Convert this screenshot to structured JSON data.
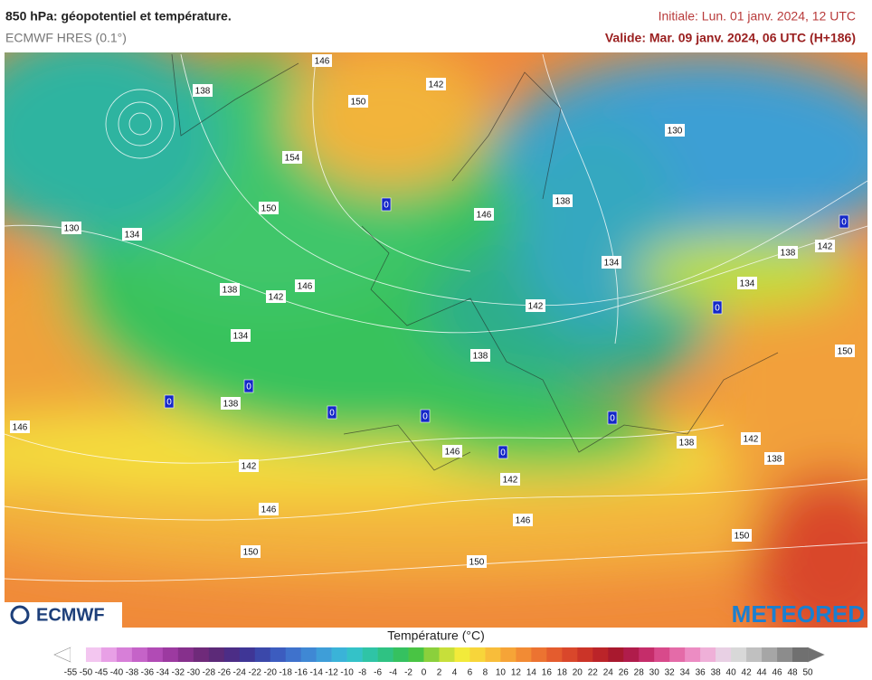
{
  "header": {
    "title": "850 hPa: géopotentiel et température.",
    "model": "ECMWF HRES (0.1°)",
    "initial": "Initiale: Lun. 01 janv. 2024, 12 UTC",
    "valid": "Valide: Mar. 09 janv. 2024, 06 UTC (H+186)"
  },
  "map": {
    "contour_labels": [
      "146",
      "138",
      "142",
      "150",
      "154",
      "130",
      "150",
      "138",
      "146",
      "130",
      "134",
      "142",
      "138",
      "134",
      "138",
      "142",
      "146",
      "134",
      "142",
      "134",
      "150",
      "138",
      "138",
      "146",
      "138",
      "142",
      "146",
      "138",
      "142",
      "142",
      "146",
      "146",
      "150",
      "150",
      "150"
    ],
    "freezing_labels": [
      "0",
      "0",
      "0",
      "0",
      "0",
      "0",
      "0",
      "0",
      "0"
    ]
  },
  "logos": {
    "left": "ECMWF",
    "right": "METEORED"
  },
  "legend": {
    "title": "Température (°C)",
    "ticks": [
      "-55",
      "-50",
      "-45",
      "-40",
      "-38",
      "-36",
      "-34",
      "-32",
      "-30",
      "-28",
      "-26",
      "-24",
      "-22",
      "-20",
      "-18",
      "-16",
      "-14",
      "-12",
      "-10",
      "-8",
      "-6",
      "-4",
      "-2",
      "0",
      "2",
      "4",
      "6",
      "8",
      "10",
      "12",
      "14",
      "16",
      "18",
      "20",
      "22",
      "24",
      "26",
      "28",
      "30",
      "32",
      "34",
      "36",
      "38",
      "40",
      "42",
      "44",
      "46",
      "48",
      "50"
    ],
    "colors": [
      "#ffffff",
      "#f3c6f0",
      "#e8a0e6",
      "#d77fd8",
      "#c563c8",
      "#b14bb5",
      "#9c3aa0",
      "#86308c",
      "#6f2a7a",
      "#5c2a78",
      "#4c2d86",
      "#3f3696",
      "#3b48aa",
      "#3c5cbf",
      "#3f72cc",
      "#3f88d4",
      "#3e9ed8",
      "#3ab3d8",
      "#34c2c8",
      "#2fc4a6",
      "#2fc283",
      "#35c160",
      "#49c444",
      "#8bd03c",
      "#c7df3a",
      "#f2ea3a",
      "#f7d53a",
      "#f8bd3a",
      "#f6a437",
      "#f28b34",
      "#ec7331",
      "#e45c2e",
      "#d9472b",
      "#cb3428",
      "#bb2429",
      "#a8192e",
      "#b01c4b",
      "#c52d6a",
      "#d84a8b",
      "#e46ba8",
      "#ec8cc3",
      "#efb0d8",
      "#e8d0e4",
      "#d8d8d8",
      "#c0c0c0",
      "#a6a6a6",
      "#8c8c8c",
      "#707070"
    ]
  }
}
